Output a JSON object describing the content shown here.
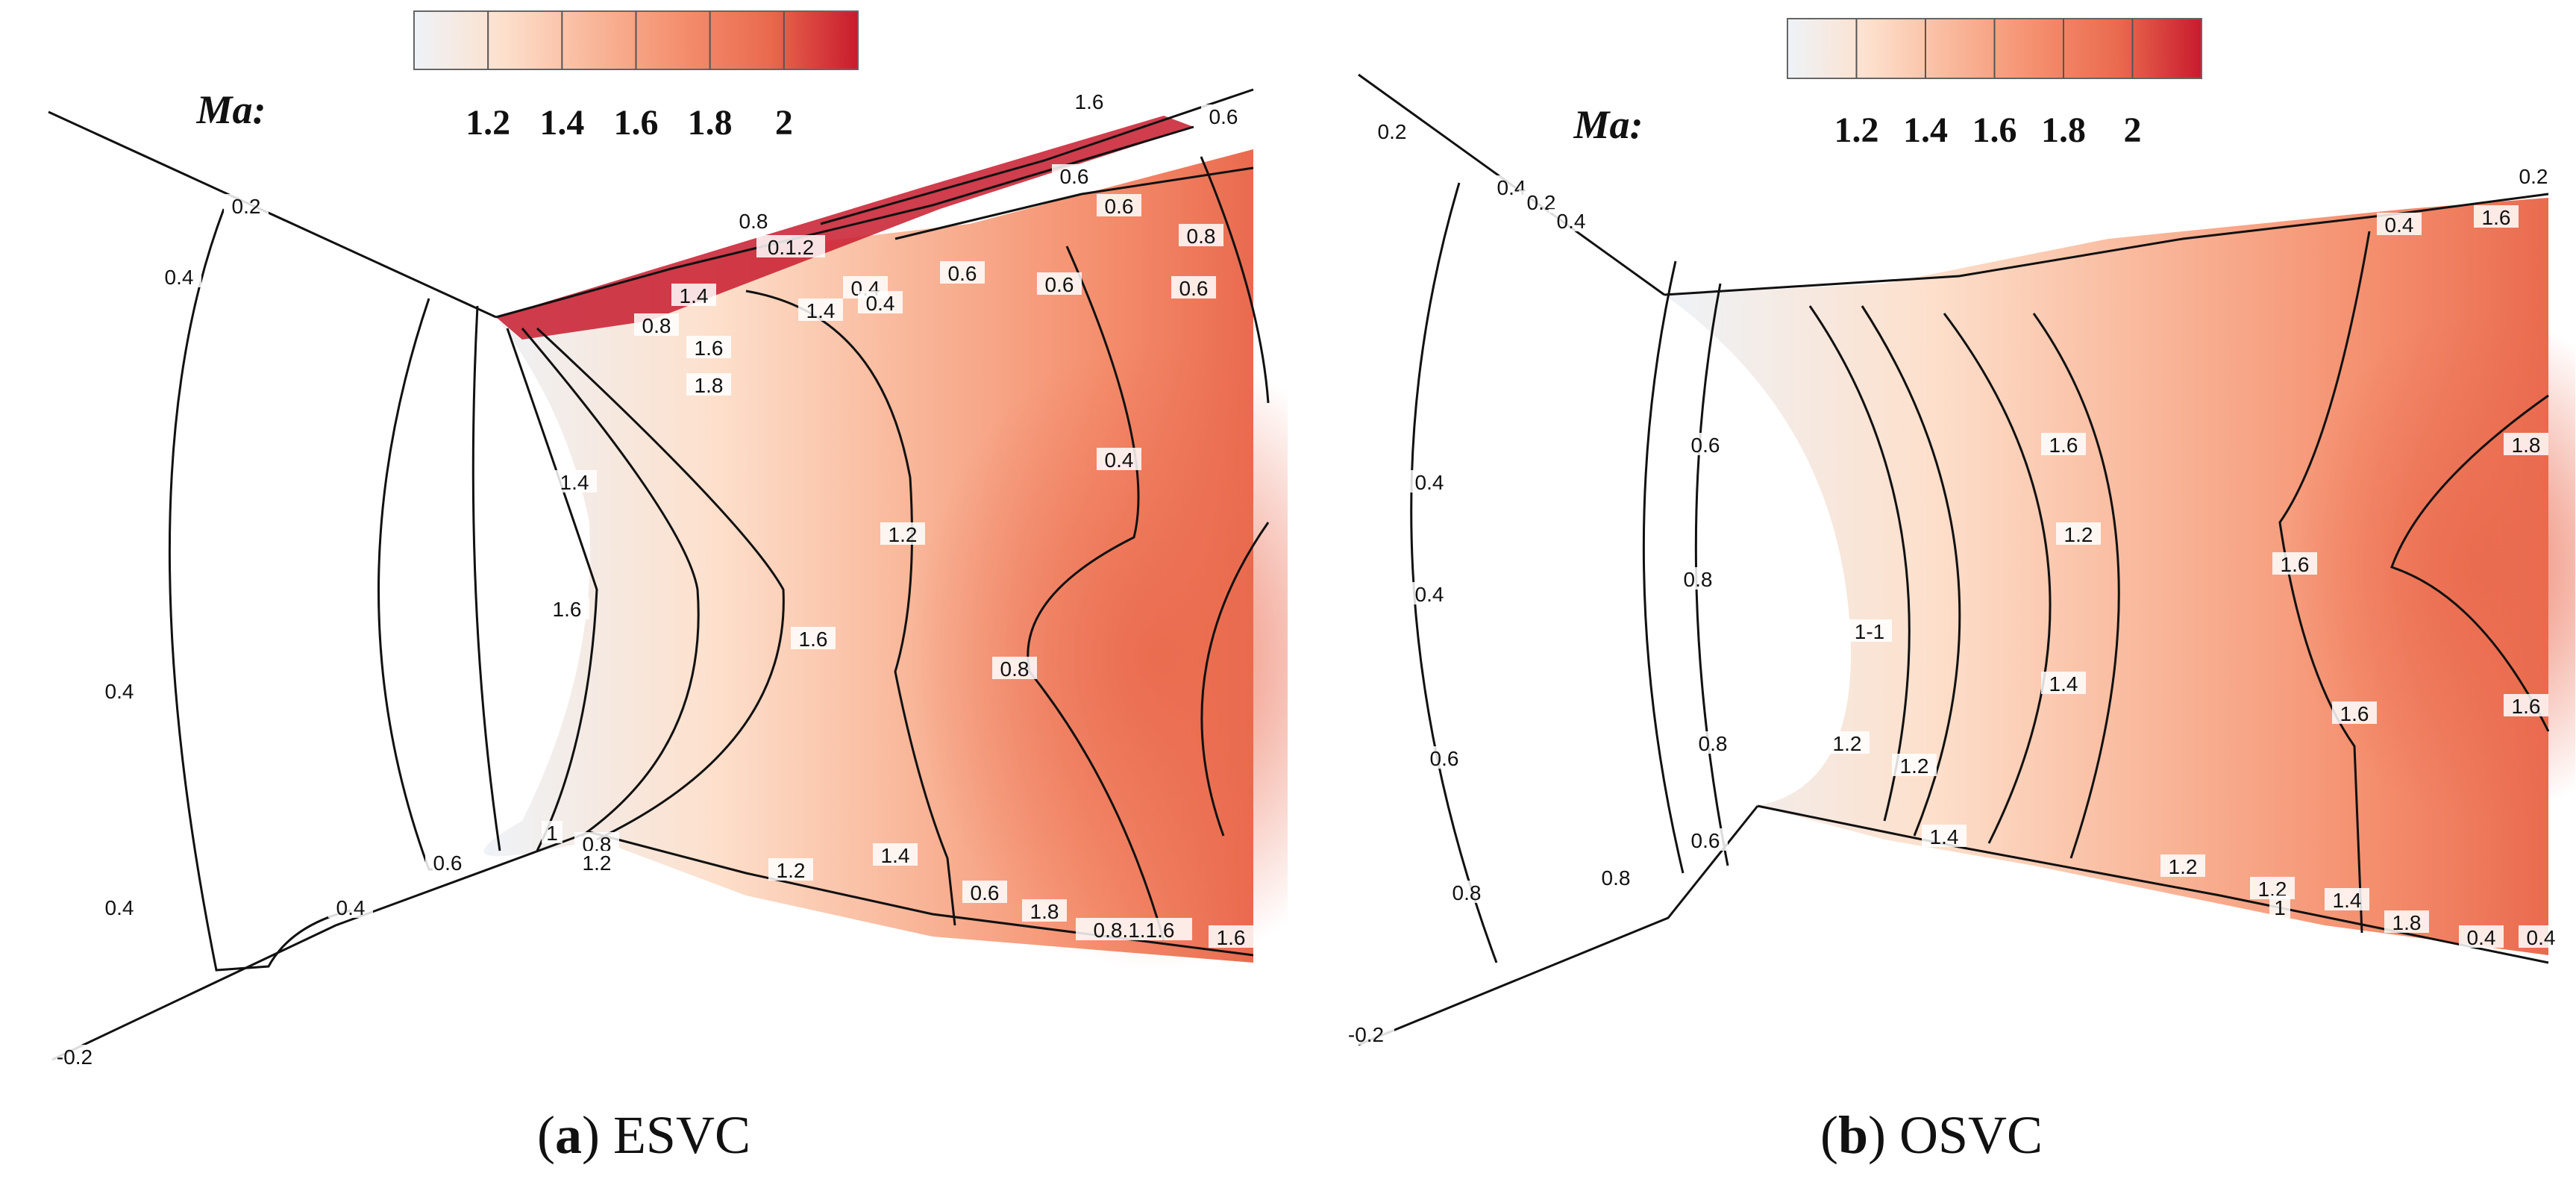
{
  "chart_data": [
    {
      "type": "heatmap",
      "panel_letter": "a",
      "panel_name": "ESVC",
      "colorbar": {
        "label": "Ma:",
        "ticks": [
          "1.2",
          "1.4",
          "1.6",
          "1.8",
          "2"
        ],
        "range": [
          1.0,
          2.1
        ],
        "colors": [
          "#eef3f8",
          "#fde0cc",
          "#f9b79a",
          "#f48f6e",
          "#ea6a4e",
          "#c81b2e"
        ]
      },
      "contour_labels": [
        "0.2",
        "0.4",
        "0.4",
        "0.4",
        "0.4",
        "0.6",
        "0.8",
        "1",
        "1.2",
        "1.4",
        "1.6",
        "1.8",
        "1.6",
        "1.4",
        "1.2",
        "0.6",
        "1.8",
        "1.6",
        "0.6",
        "0.8",
        "0.6",
        "0.4",
        "1.2",
        "0.8",
        "0.4",
        "0.6",
        "0.6",
        "-0.2",
        "0.6",
        "0.8",
        "0.1.2",
        "1.4",
        "0.4",
        "0.6",
        "0.8.1.1.6",
        "1.6",
        "0.8",
        "1.4",
        "1.6"
      ]
    },
    {
      "type": "heatmap",
      "panel_letter": "b",
      "panel_name": "OSVC",
      "colorbar": {
        "label": "Ma:",
        "ticks": [
          "1.2",
          "1.4",
          "1.6",
          "1.8",
          "2"
        ],
        "range": [
          1.0,
          2.1
        ],
        "colors": [
          "#eef3f8",
          "#fde0cc",
          "#f9b79a",
          "#f48f6e",
          "#ea6a4e",
          "#c81b2e"
        ]
      },
      "contour_labels": [
        "0.2",
        "0.4",
        "0.2",
        "0.4",
        "0.4",
        "0.4",
        "0.6",
        "0.8",
        "0.8",
        "0.6",
        "0.8",
        "0.8",
        "0.6",
        "1-1",
        "1.2",
        "1.2",
        "1.4",
        "1.2",
        "1.4",
        "1.2",
        "1.6",
        "1.6",
        "1.6",
        "1.8",
        "1.6",
        "0.2",
        "0.4",
        "-0.2",
        "0.4",
        "1.6",
        "1.8",
        "1.2",
        "1.4",
        "0.4",
        "1"
      ]
    }
  ]
}
